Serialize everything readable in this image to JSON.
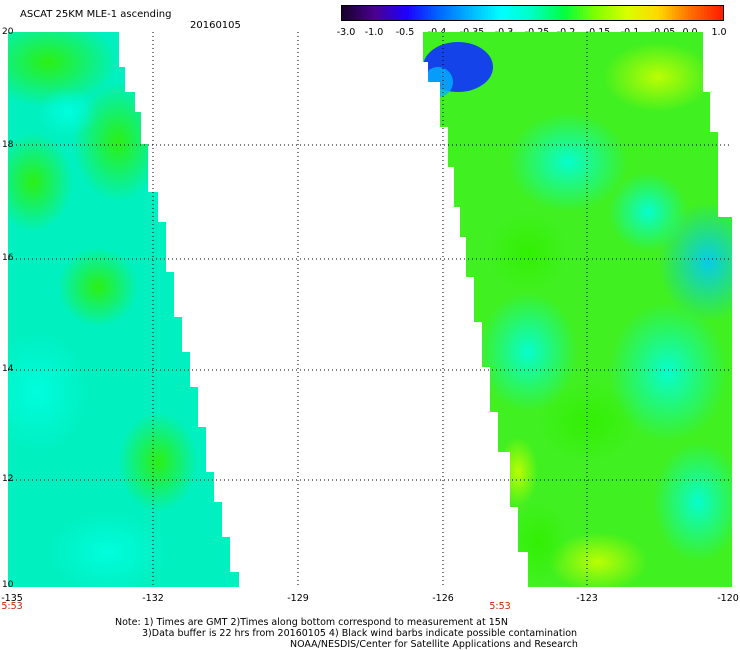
{
  "header": {
    "title": "ASCAT 25KM MLE-1 ascending",
    "date": "20160105"
  },
  "colorbar": {
    "labels": [
      "-3.0",
      "-1.0",
      "-0.5",
      "-0.4",
      "-0.35",
      "-0.3",
      "-0.25",
      "-0.2",
      "-0.15",
      "-0.1",
      "-0.05",
      "0.0",
      "1.0"
    ],
    "colors": [
      "#1a0030",
      "#4a0090",
      "#1e00ff",
      "#0064ff",
      "#00b4ff",
      "#00ffff",
      "#00ffc0",
      "#00ff40",
      "#80ff00",
      "#d8ff00",
      "#ffd800",
      "#ff7000",
      "#ff1e00"
    ]
  },
  "map": {
    "lon_ticks": [
      "-135",
      "-132",
      "-129",
      "-126",
      "-123",
      "-120"
    ],
    "lat_ticks": [
      "20",
      "18",
      "16",
      "14",
      "12",
      "10"
    ],
    "lon_range": [
      -135,
      -120
    ],
    "lat_range": [
      10,
      20
    ],
    "pass_times": [
      "5:53",
      "5:53"
    ]
  },
  "footer": {
    "note_line1": "Note: 1) Times are GMT 2)Times along bottom correspond to measurement at 15N",
    "note_line2": "3)Data buffer is 22 hrs from 20160105 4) Black wind barbs indicate possible contamination",
    "credit": "NOAA/NESDIS/Center for Satellite Applications and Research"
  }
}
